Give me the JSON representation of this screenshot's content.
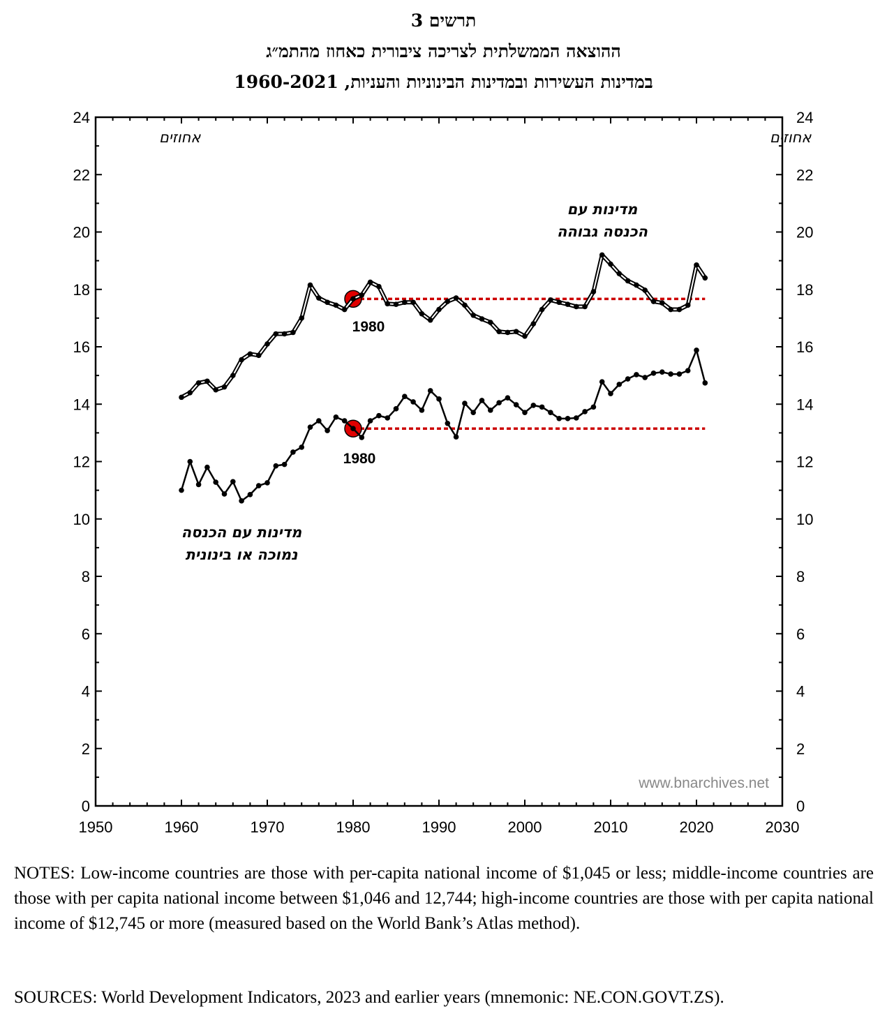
{
  "header": {
    "figure_label": "תרשים 3",
    "title_line1": "ההוצאה הממשלתית לצריכה ציבורית כאחוז מהתמ״ג",
    "title_line2": "במדינות העשירות ובמדינות הבינוניות והעניות, 1960-2021"
  },
  "chart_data": {
    "type": "line",
    "title": "ההוצאה הממשלתית לצריכה ציבורית כאחוז מהתמ״ג",
    "ylabel_left": "אחוזים",
    "ylabel_right": "אחוזים",
    "xlim": [
      1950,
      2030
    ],
    "ylim": [
      0,
      24
    ],
    "x_ticks": [
      1950,
      1960,
      1970,
      1980,
      1990,
      2000,
      2010,
      2020,
      2030
    ],
    "y_ticks": [
      0,
      2,
      4,
      6,
      8,
      10,
      12,
      14,
      16,
      18,
      20,
      22,
      24
    ],
    "grid": false,
    "x": [
      1960,
      1961,
      1962,
      1963,
      1964,
      1965,
      1966,
      1967,
      1968,
      1969,
      1970,
      1971,
      1972,
      1973,
      1974,
      1975,
      1976,
      1977,
      1978,
      1979,
      1980,
      1981,
      1982,
      1983,
      1984,
      1985,
      1986,
      1987,
      1988,
      1989,
      1990,
      1991,
      1992,
      1993,
      1994,
      1995,
      1996,
      1997,
      1998,
      1999,
      2000,
      2001,
      2002,
      2003,
      2004,
      2005,
      2006,
      2007,
      2008,
      2009,
      2010,
      2011,
      2012,
      2013,
      2014,
      2015,
      2016,
      2017,
      2018,
      2019,
      2020,
      2021
    ],
    "series": [
      {
        "name": "מדינות עם הכנסה גבוהה",
        "label_line1": "מדינות עם",
        "label_line2": "הכנסה גבוהה",
        "style": "double-line",
        "values": [
          14.24,
          14.4,
          14.74,
          14.8,
          14.5,
          14.6,
          15.0,
          15.55,
          15.75,
          15.7,
          16.1,
          16.45,
          16.45,
          16.5,
          17.0,
          18.15,
          17.7,
          17.55,
          17.45,
          17.3,
          17.67,
          17.8,
          18.25,
          18.1,
          17.5,
          17.48,
          17.55,
          17.55,
          17.15,
          16.93,
          17.3,
          17.58,
          17.7,
          17.45,
          17.1,
          16.97,
          16.85,
          16.53,
          16.5,
          16.53,
          16.37,
          16.8,
          17.3,
          17.63,
          17.55,
          17.48,
          17.4,
          17.4,
          17.92,
          19.2,
          18.88,
          18.55,
          18.3,
          18.15,
          17.97,
          17.58,
          17.53,
          17.3,
          17.3,
          17.45,
          18.85,
          18.4
        ],
        "reference_year": "1980",
        "reference_value": 17.67
      },
      {
        "name": "מדינות עם הכנסה נמוכה או בינונית",
        "label_line1": "מדינות עם הכנסה",
        "label_line2": "נמוכה או בינונית",
        "style": "single-line",
        "values": [
          11.0,
          12.0,
          11.2,
          11.8,
          11.28,
          10.87,
          11.3,
          10.63,
          10.85,
          11.16,
          11.26,
          11.85,
          11.9,
          12.33,
          12.5,
          13.2,
          13.42,
          13.08,
          13.55,
          13.42,
          13.15,
          12.84,
          13.42,
          13.6,
          13.52,
          13.84,
          14.27,
          14.08,
          13.79,
          14.47,
          14.18,
          13.33,
          12.86,
          14.03,
          13.71,
          14.13,
          13.79,
          14.05,
          14.22,
          13.98,
          13.71,
          13.96,
          13.9,
          13.71,
          13.5,
          13.5,
          13.52,
          13.74,
          13.9,
          14.78,
          14.37,
          14.69,
          14.88,
          15.03,
          14.93,
          15.08,
          15.12,
          15.05,
          15.05,
          15.17,
          15.88,
          14.74
        ],
        "reference_year": "1980",
        "reference_value": 13.15
      }
    ],
    "reference_line_color": "#cc0000",
    "marker_highlight_color": "#e00000",
    "watermark": "www.bnarchives.net"
  },
  "footer": {
    "notes": "NOTES: Low-income countries are those with per-capita national income of $1,045 or less; middle-income countries are those with per capita national income between $1,046 and 12,744; high-income countries are those with per capita national income of $12,745 or more (measured based on the World Bank’s Atlas method).",
    "sources": "SOURCES: World Development Indicators, 2023 and earlier years (mnemonic: NE.CON.GOVT.ZS)."
  }
}
